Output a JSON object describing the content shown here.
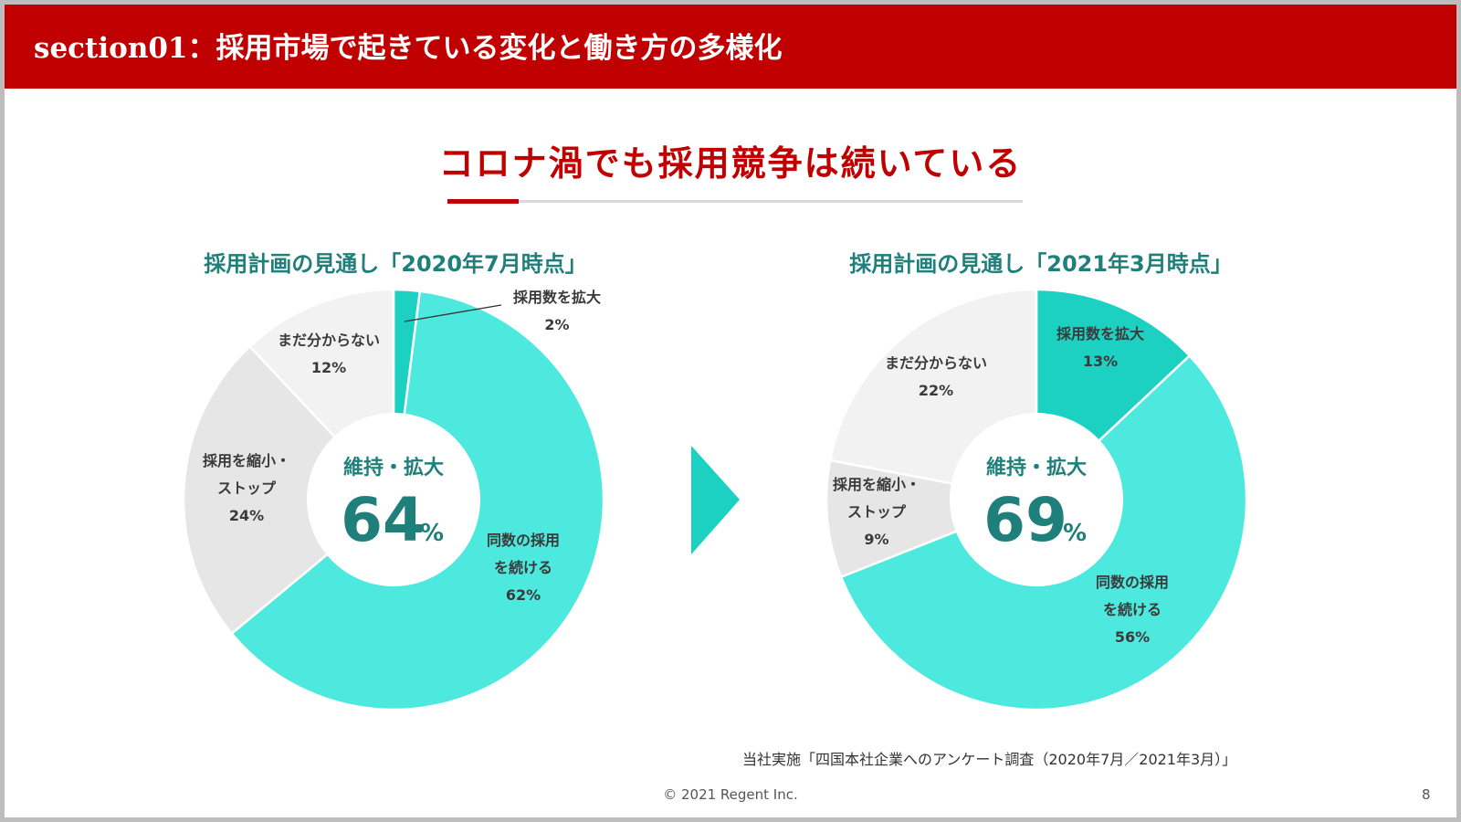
{
  "header": {
    "title": "section01：採用市場で起きている変化と働き方の多様化"
  },
  "main_title": "コロナ渦でも採用競争は続いている",
  "colors": {
    "brand_red": "#c00000",
    "teal_dark": "#1f7f7a",
    "slice_expand": "#1dd1c2",
    "slice_continue": "#4de8de",
    "slice_reduce": "#e6e6e6",
    "slice_unknown": "#f2f2f2"
  },
  "chart_data": [
    {
      "type": "pie",
      "title": "採用計画の見通し「2020年7月時点」",
      "center_label": "維持・拡大",
      "center_value": "64",
      "center_unit": "%",
      "slices": [
        {
          "label": "採用数を拡大",
          "value": 2,
          "value_label": "2%"
        },
        {
          "label": "同数の採用を続ける",
          "value": 62,
          "value_label": "62%"
        },
        {
          "label": "採用を縮小・ストップ",
          "value": 24,
          "value_label": "24%"
        },
        {
          "label": "まだ分からない",
          "value": 12,
          "value_label": "12%"
        }
      ]
    },
    {
      "type": "pie",
      "title": "採用計画の見通し「2021年3月時点」",
      "center_label": "維持・拡大",
      "center_value": "69",
      "center_unit": "%",
      "slices": [
        {
          "label": "採用数を拡大",
          "value": 13,
          "value_label": "13%"
        },
        {
          "label": "同数の採用を続ける",
          "value": 56,
          "value_label": "56%"
        },
        {
          "label": "採用を縮小・ストップ",
          "value": 9,
          "value_label": "9%"
        },
        {
          "label": "まだ分からない",
          "value": 22,
          "value_label": "22%"
        }
      ]
    }
  ],
  "source_note": "当社実施「四国本社企業へのアンケート調査（2020年7月／2021年3月）」",
  "footer": {
    "copyright": "© 2021 Regent Inc.",
    "page_number": "8"
  }
}
